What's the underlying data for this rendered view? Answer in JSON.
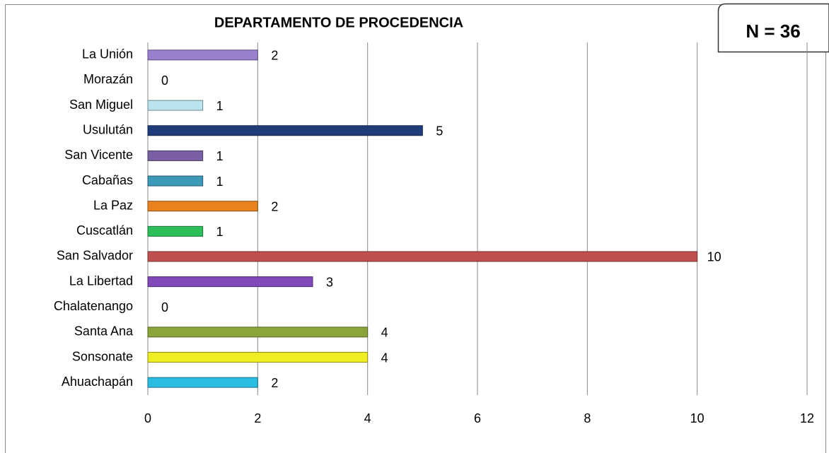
{
  "chart_data": {
    "type": "bar",
    "orientation": "horizontal",
    "title": "DEPARTAMENTO DE PROCEDENCIA",
    "annotation": "N = 36",
    "categories": [
      "La Unión",
      "Morazán",
      "San Miguel",
      "Usulután",
      "San Vicente",
      "Cabañas",
      "La Paz",
      "Cuscatlán",
      "San Salvador",
      "La Libertad",
      "Chalatenango",
      "Santa Ana",
      "Sonsonate",
      "Ahuachapán"
    ],
    "values": [
      2,
      0,
      1,
      5,
      1,
      1,
      2,
      1,
      10,
      3,
      0,
      4,
      4,
      2
    ],
    "colors": [
      "#9b7fcf",
      null,
      "#b9e3ee",
      "#1f3c7a",
      "#7a60a2",
      "#3d99b8",
      "#e8821e",
      "#2cbf5a",
      "#c0504d",
      "#8048b8",
      null,
      "#8aa63a",
      "#eeee22",
      "#2abde2"
    ],
    "xlim": [
      0,
      12
    ],
    "xticks": [
      0,
      2,
      4,
      6,
      8,
      10,
      12
    ],
    "grid": true
  }
}
